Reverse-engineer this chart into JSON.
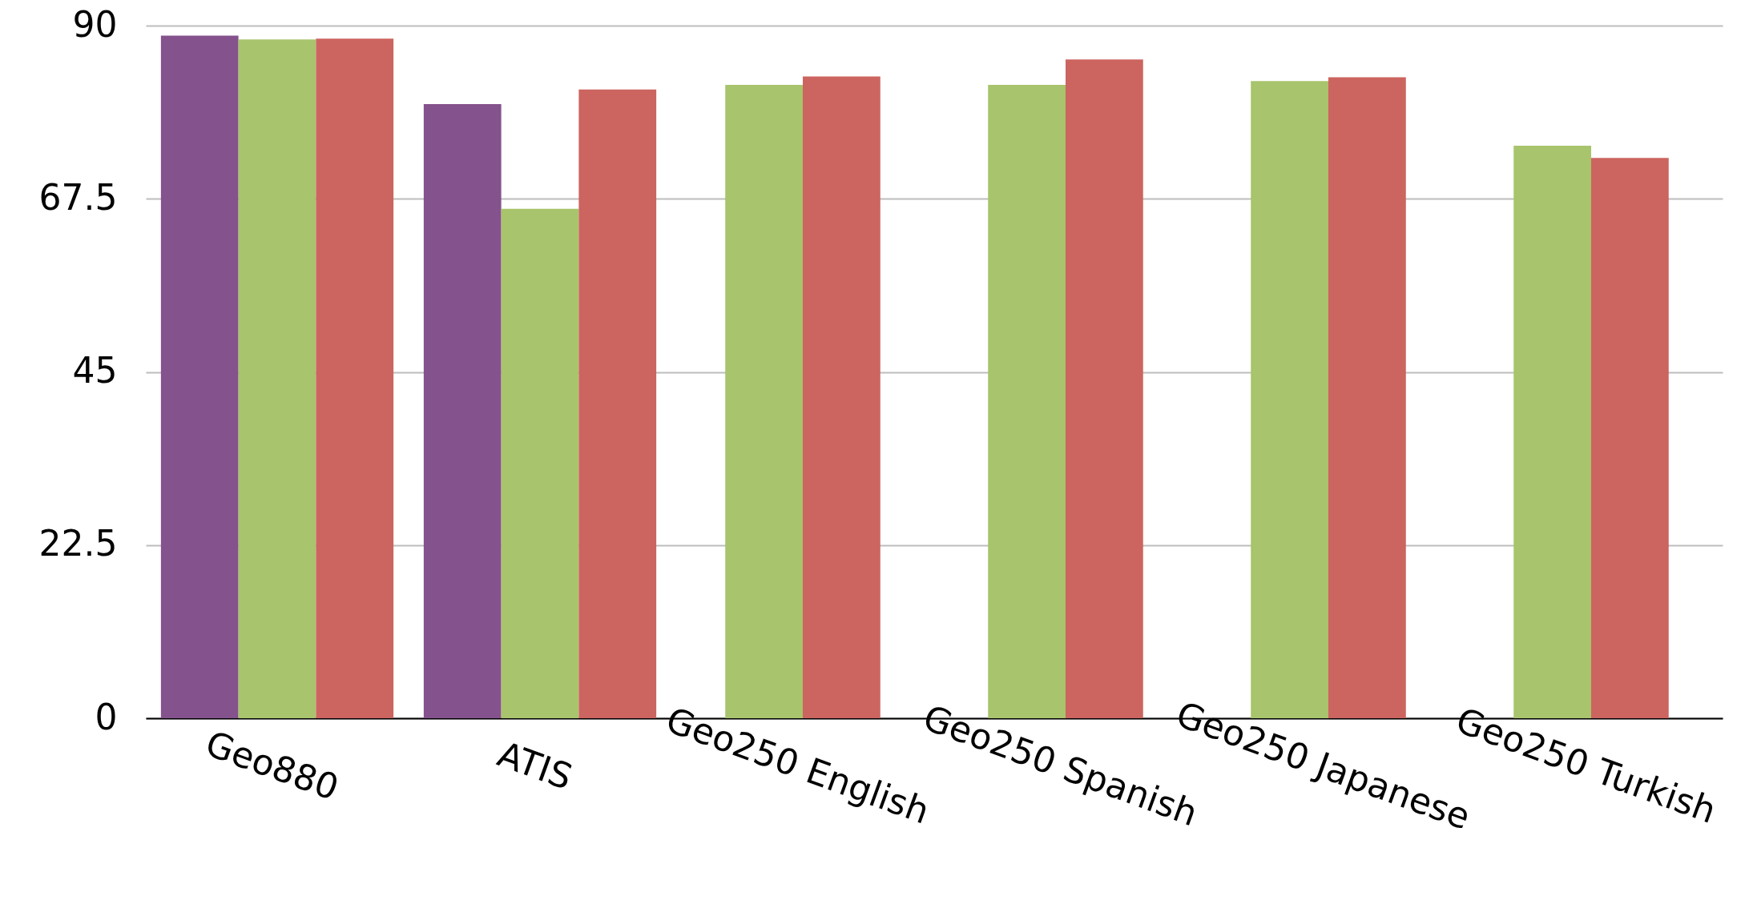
{
  "chart_data": {
    "type": "bar",
    "categories": [
      "Geo880",
      "ATIS",
      "Geo250 English",
      "Geo250 Spanish",
      "Geo250 Japanese",
      "Geo250 Turkish"
    ],
    "series": [
      {
        "color": "#84528c",
        "values": [
          88.7,
          79.8,
          null,
          null,
          null,
          null
        ]
      },
      {
        "color": "#a8c46c",
        "values": [
          88.2,
          66.2,
          82.3,
          82.3,
          82.8,
          74.4
        ]
      },
      {
        "color": "#cc645f",
        "values": [
          88.3,
          81.7,
          83.4,
          85.6,
          83.3,
          72.8
        ]
      }
    ],
    "ylim": [
      0,
      90
    ],
    "yticks": [
      0,
      22.5,
      45,
      67.5,
      90
    ],
    "grid": "y",
    "legend": false
  }
}
